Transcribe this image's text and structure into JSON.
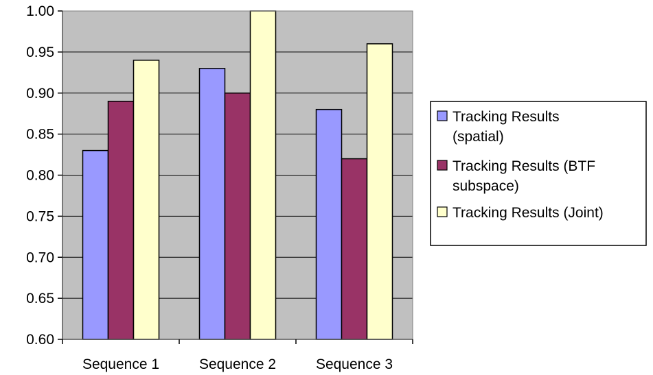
{
  "chart_data": {
    "type": "bar",
    "categories": [
      "Sequence 1",
      "Sequence 2",
      "Sequence 3"
    ],
    "series": [
      {
        "name": "Tracking Results (spatial)",
        "legend_lines": [
          "Tracking Results",
          "(spatial)"
        ],
        "values": [
          0.83,
          0.93,
          0.88
        ],
        "color": "#9999ff"
      },
      {
        "name": "Tracking Results (BTF subspace)",
        "legend_lines": [
          "Tracking Results (BTF",
          "subspace)"
        ],
        "values": [
          0.89,
          0.9,
          0.82
        ],
        "color": "#993366"
      },
      {
        "name": "Tracking Results (Joint)",
        "legend_lines": [
          "Tracking Results (Joint)"
        ],
        "values": [
          0.94,
          1.0,
          0.96
        ],
        "color": "#ffffcc"
      }
    ],
    "title": "",
    "xlabel": "",
    "ylabel": "",
    "ylim": [
      0.6,
      1.0
    ],
    "yticks": [
      "0.60",
      "0.65",
      "0.70",
      "0.75",
      "0.80",
      "0.85",
      "0.90",
      "0.95",
      "1.00"
    ],
    "grid": true,
    "plot_background": "#c0c0c0",
    "legend_position": "right"
  }
}
